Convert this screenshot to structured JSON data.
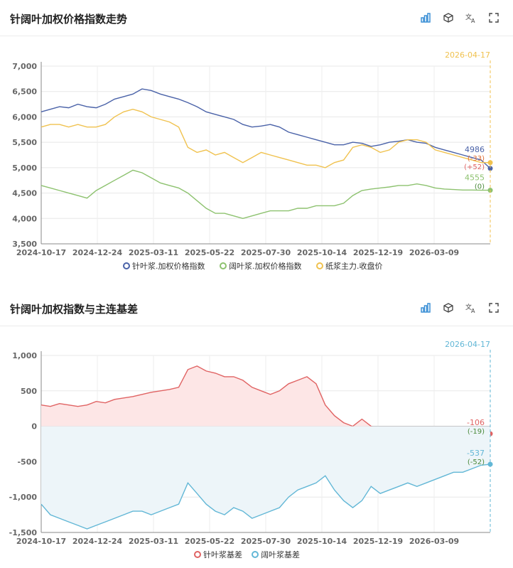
{
  "panel1": {
    "title": "针阔叶加权价格指数走势",
    "icons": [
      "bar-chart-icon",
      "cube-icon",
      "translate-icon",
      "fullscreen-icon"
    ]
  },
  "panel2": {
    "title": "针阔叶加权指数与主连基差",
    "icons": [
      "bar-chart-icon",
      "cube-icon",
      "translate-icon",
      "fullscreen-icon"
    ]
  },
  "chart_data": [
    {
      "type": "line",
      "marker_label": "2026-04-17",
      "x_ticks": [
        "2024-10-17",
        "2024-12-24",
        "2025-03-11",
        "2025-05-22",
        "2025-07-30",
        "2025-10-14",
        "2025-12-19",
        "2026-03-09"
      ],
      "ylim": [
        3500,
        7000
      ],
      "y_ticks": [
        "3,500",
        "4,000",
        "4,500",
        "5,000",
        "5,500",
        "6,000",
        "6,500",
        "7,000"
      ],
      "legend_position": "bottom",
      "series": [
        {
          "name": "针叶浆.加权价格指数",
          "color": "#4a62a8",
          "end_value": "4986",
          "values": [
            6100,
            6150,
            6200,
            6180,
            6250,
            6200,
            6180,
            6250,
            6350,
            6400,
            6450,
            6550,
            6520,
            6450,
            6400,
            6350,
            6280,
            6200,
            6100,
            6050,
            6000,
            5950,
            5850,
            5800,
            5820,
            5850,
            5800,
            5700,
            5650,
            5600,
            5550,
            5500,
            5450,
            5450,
            5500,
            5480,
            5420,
            5450,
            5500,
            5520,
            5550,
            5500,
            5480,
            5400,
            5350,
            5300,
            5250,
            5200,
            5150,
            4986
          ]
        },
        {
          "name": "阔叶浆.加权价格指数",
          "color": "#8dc26f",
          "end_value": "4555",
          "end_change": "(0)",
          "values": [
            4650,
            4600,
            4550,
            4500,
            4450,
            4400,
            4550,
            4650,
            4750,
            4850,
            4950,
            4900,
            4800,
            4700,
            4650,
            4600,
            4500,
            4350,
            4200,
            4100,
            4100,
            4050,
            4000,
            4050,
            4100,
            4150,
            4150,
            4150,
            4200,
            4200,
            4250,
            4250,
            4250,
            4300,
            4450,
            4550,
            4580,
            4600,
            4620,
            4650,
            4650,
            4680,
            4650,
            4600,
            4580,
            4570,
            4560,
            4560,
            4555,
            4555
          ]
        },
        {
          "name": "纸浆主力.收盘价",
          "color": "#f0c24f",
          "end_value": "5100",
          "values": [
            5800,
            5850,
            5850,
            5800,
            5850,
            5800,
            5800,
            5850,
            6000,
            6100,
            6150,
            6100,
            6000,
            5950,
            5900,
            5800,
            5400,
            5300,
            5350,
            5250,
            5300,
            5200,
            5100,
            5200,
            5300,
            5250,
            5200,
            5150,
            5100,
            5050,
            5050,
            5000,
            5100,
            5150,
            5400,
            5450,
            5400,
            5300,
            5350,
            5500,
            5550,
            5550,
            5500,
            5350,
            5300,
            5250,
            5200,
            5150,
            5100,
            5100
          ]
        }
      ],
      "end_labels": [
        "(-33)",
        "(+52)"
      ]
    },
    {
      "type": "area",
      "marker_label": "2026-04-17",
      "x_ticks": [
        "2024-10-17",
        "2024-12-24",
        "2025-03-11",
        "2025-05-22",
        "2025-07-30",
        "2025-10-14",
        "2025-12-19",
        "2026-03-09"
      ],
      "ylim": [
        -1500,
        1000
      ],
      "y_ticks": [
        "-1,500",
        "-1,000",
        "-500",
        "0",
        "500",
        "1,000"
      ],
      "legend_position": "bottom",
      "series": [
        {
          "name": "针叶浆基差",
          "color": "#e06363",
          "fill": "#fde6e6",
          "end_value": "-106",
          "end_change": "(-19)",
          "values": [
            300,
            280,
            320,
            300,
            280,
            300,
            350,
            330,
            380,
            400,
            420,
            450,
            480,
            500,
            520,
            550,
            800,
            850,
            780,
            750,
            700,
            700,
            650,
            550,
            500,
            450,
            500,
            600,
            650,
            700,
            600,
            300,
            150,
            50,
            0,
            100,
            0,
            -50,
            -50,
            -40,
            -30,
            -20,
            -20,
            -30,
            -30,
            -40,
            -50,
            -60,
            -80,
            -106
          ]
        },
        {
          "name": "阔叶浆基差",
          "color": "#62b7d6",
          "fill": "#edf5f9",
          "end_value": "-537",
          "end_change": "(-52)",
          "values": [
            -1100,
            -1250,
            -1300,
            -1350,
            -1400,
            -1450,
            -1400,
            -1350,
            -1300,
            -1250,
            -1200,
            -1200,
            -1250,
            -1200,
            -1150,
            -1100,
            -800,
            -950,
            -1100,
            -1200,
            -1250,
            -1150,
            -1200,
            -1300,
            -1250,
            -1200,
            -1150,
            -1000,
            -900,
            -850,
            -800,
            -700,
            -900,
            -1050,
            -1150,
            -1050,
            -850,
            -950,
            -900,
            -850,
            -800,
            -850,
            -800,
            -750,
            -700,
            -650,
            -650,
            -600,
            -550,
            -537
          ]
        }
      ]
    }
  ]
}
